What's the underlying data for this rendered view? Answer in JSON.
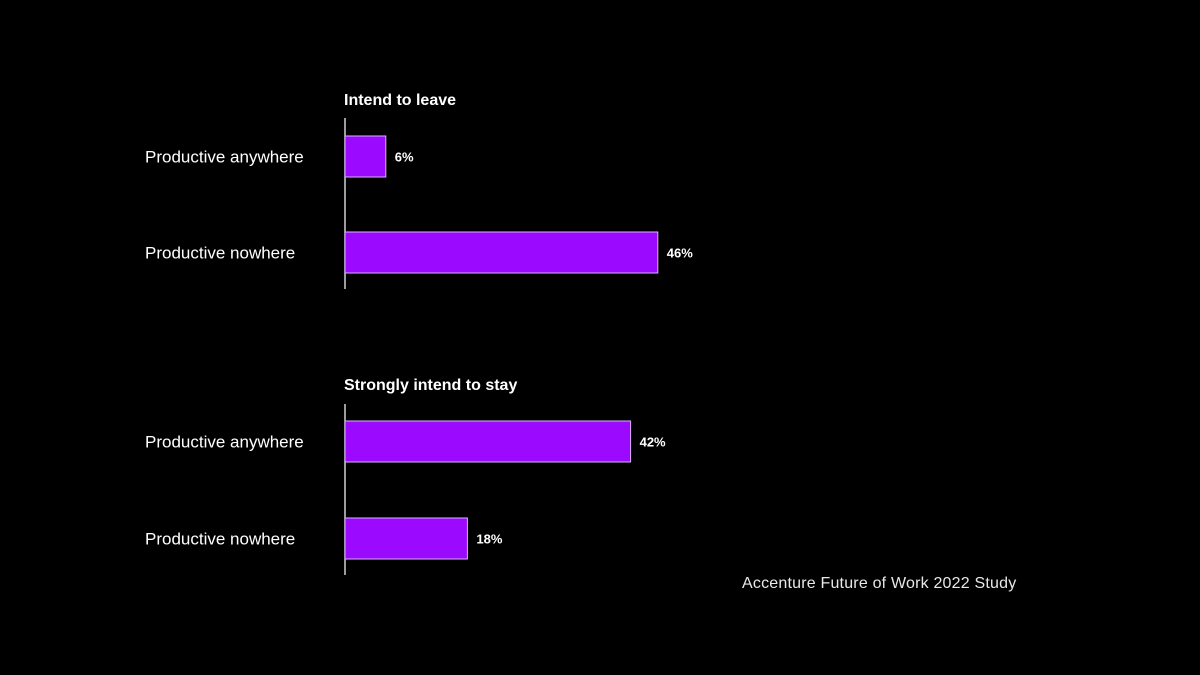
{
  "colors": {
    "background": "#000000",
    "bar_fill": "#9b0aff",
    "bar_stroke": "#d9b3ff",
    "text": "#ffffff",
    "axis": "#d0d0d0"
  },
  "source": "Accenture Future of Work 2022 Study",
  "chart_data": [
    {
      "type": "bar",
      "orientation": "horizontal",
      "title": "Intend to leave",
      "categories": [
        "Productive anywhere",
        "Productive nowhere"
      ],
      "values": [
        6,
        46
      ],
      "labels": [
        "6%",
        "46%"
      ],
      "unit": "%",
      "xlim": [
        0,
        100
      ],
      "grid": false
    },
    {
      "type": "bar",
      "orientation": "horizontal",
      "title": "Strongly intend to stay",
      "categories": [
        "Productive anywhere",
        "Productive nowhere"
      ],
      "values": [
        42,
        18
      ],
      "labels": [
        "42%",
        "18%"
      ],
      "unit": "%",
      "xlim": [
        0,
        100
      ],
      "grid": false
    }
  ]
}
